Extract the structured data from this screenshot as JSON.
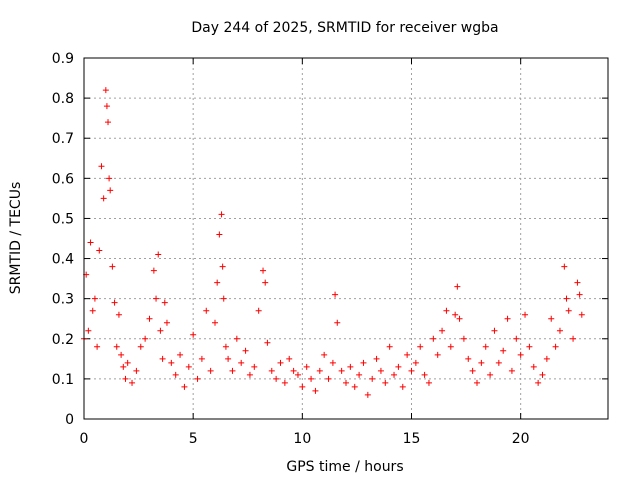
{
  "chart_data": {
    "type": "scatter",
    "title": "Day 244 of 2025, SRMTID for receiver wgba",
    "xlabel": "GPS time / hours",
    "ylabel": "SRMTID / TECUs",
    "xlim": [
      0,
      24
    ],
    "ylim": [
      0,
      0.9
    ],
    "x_ticks": [
      0,
      5,
      10,
      15,
      20
    ],
    "x_tick_labels": [
      "0",
      "5",
      "10",
      "15",
      "20"
    ],
    "y_ticks": [
      0,
      0.1,
      0.2,
      0.3,
      0.4,
      0.5,
      0.6,
      0.7,
      0.8,
      0.9
    ],
    "y_tick_labels": [
      "0",
      "0.1",
      "0.2",
      "0.3",
      "0.4",
      "0.5",
      "0.6",
      "0.7",
      "0.8",
      "0.9"
    ],
    "grid": true,
    "marker": "+",
    "marker_color": "#ff0000",
    "series": [
      {
        "name": "SRMTID",
        "x": [
          0.0,
          0.1,
          0.2,
          0.3,
          0.4,
          0.5,
          0.6,
          0.7,
          0.8,
          0.9,
          1.0,
          1.05,
          1.1,
          1.15,
          1.2,
          1.3,
          1.4,
          1.5,
          1.6,
          1.7,
          1.8,
          1.9,
          2.0,
          2.2,
          2.4,
          2.6,
          2.8,
          3.0,
          3.2,
          3.3,
          3.4,
          3.5,
          3.6,
          3.7,
          3.8,
          4.0,
          4.2,
          4.4,
          4.6,
          4.8,
          5.0,
          5.2,
          5.4,
          5.6,
          5.8,
          6.0,
          6.1,
          6.2,
          6.3,
          6.35,
          6.4,
          6.5,
          6.6,
          6.8,
          7.0,
          7.2,
          7.4,
          7.6,
          7.8,
          8.0,
          8.2,
          8.3,
          8.4,
          8.6,
          8.8,
          9.0,
          9.2,
          9.4,
          9.6,
          9.8,
          10.0,
          10.2,
          10.4,
          10.6,
          10.8,
          11.0,
          11.2,
          11.4,
          11.5,
          11.6,
          11.8,
          12.0,
          12.2,
          12.4,
          12.6,
          12.8,
          13.0,
          13.2,
          13.4,
          13.6,
          13.8,
          14.0,
          14.2,
          14.4,
          14.6,
          14.8,
          15.0,
          15.2,
          15.4,
          15.6,
          15.8,
          16.0,
          16.2,
          16.4,
          16.6,
          16.8,
          17.0,
          17.1,
          17.2,
          17.4,
          17.6,
          17.8,
          18.0,
          18.2,
          18.4,
          18.6,
          18.8,
          19.0,
          19.2,
          19.4,
          19.6,
          19.8,
          20.0,
          20.2,
          20.4,
          20.6,
          20.8,
          21.0,
          21.2,
          21.4,
          21.6,
          21.8,
          22.0,
          22.1,
          22.2,
          22.4,
          22.6,
          22.7,
          22.8
        ],
        "y": [
          0.2,
          0.36,
          0.22,
          0.44,
          0.27,
          0.3,
          0.18,
          0.42,
          0.63,
          0.55,
          0.82,
          0.78,
          0.74,
          0.6,
          0.57,
          0.38,
          0.29,
          0.18,
          0.26,
          0.16,
          0.13,
          0.1,
          0.14,
          0.09,
          0.12,
          0.18,
          0.2,
          0.25,
          0.37,
          0.3,
          0.41,
          0.22,
          0.15,
          0.29,
          0.24,
          0.14,
          0.11,
          0.16,
          0.08,
          0.13,
          0.21,
          0.1,
          0.15,
          0.27,
          0.12,
          0.24,
          0.34,
          0.46,
          0.51,
          0.38,
          0.3,
          0.18,
          0.15,
          0.12,
          0.2,
          0.14,
          0.17,
          0.11,
          0.13,
          0.27,
          0.37,
          0.34,
          0.19,
          0.12,
          0.1,
          0.14,
          0.09,
          0.15,
          0.12,
          0.11,
          0.08,
          0.13,
          0.1,
          0.07,
          0.12,
          0.16,
          0.1,
          0.14,
          0.31,
          0.24,
          0.12,
          0.09,
          0.13,
          0.08,
          0.11,
          0.14,
          0.06,
          0.1,
          0.15,
          0.12,
          0.09,
          0.18,
          0.11,
          0.13,
          0.08,
          0.16,
          0.12,
          0.14,
          0.18,
          0.11,
          0.09,
          0.2,
          0.16,
          0.22,
          0.27,
          0.18,
          0.26,
          0.33,
          0.25,
          0.2,
          0.15,
          0.12,
          0.09,
          0.14,
          0.18,
          0.11,
          0.22,
          0.14,
          0.17,
          0.25,
          0.12,
          0.2,
          0.16,
          0.26,
          0.18,
          0.13,
          0.09,
          0.11,
          0.15,
          0.25,
          0.18,
          0.22,
          0.38,
          0.3,
          0.27,
          0.2,
          0.34,
          0.31,
          0.26
        ]
      }
    ]
  }
}
